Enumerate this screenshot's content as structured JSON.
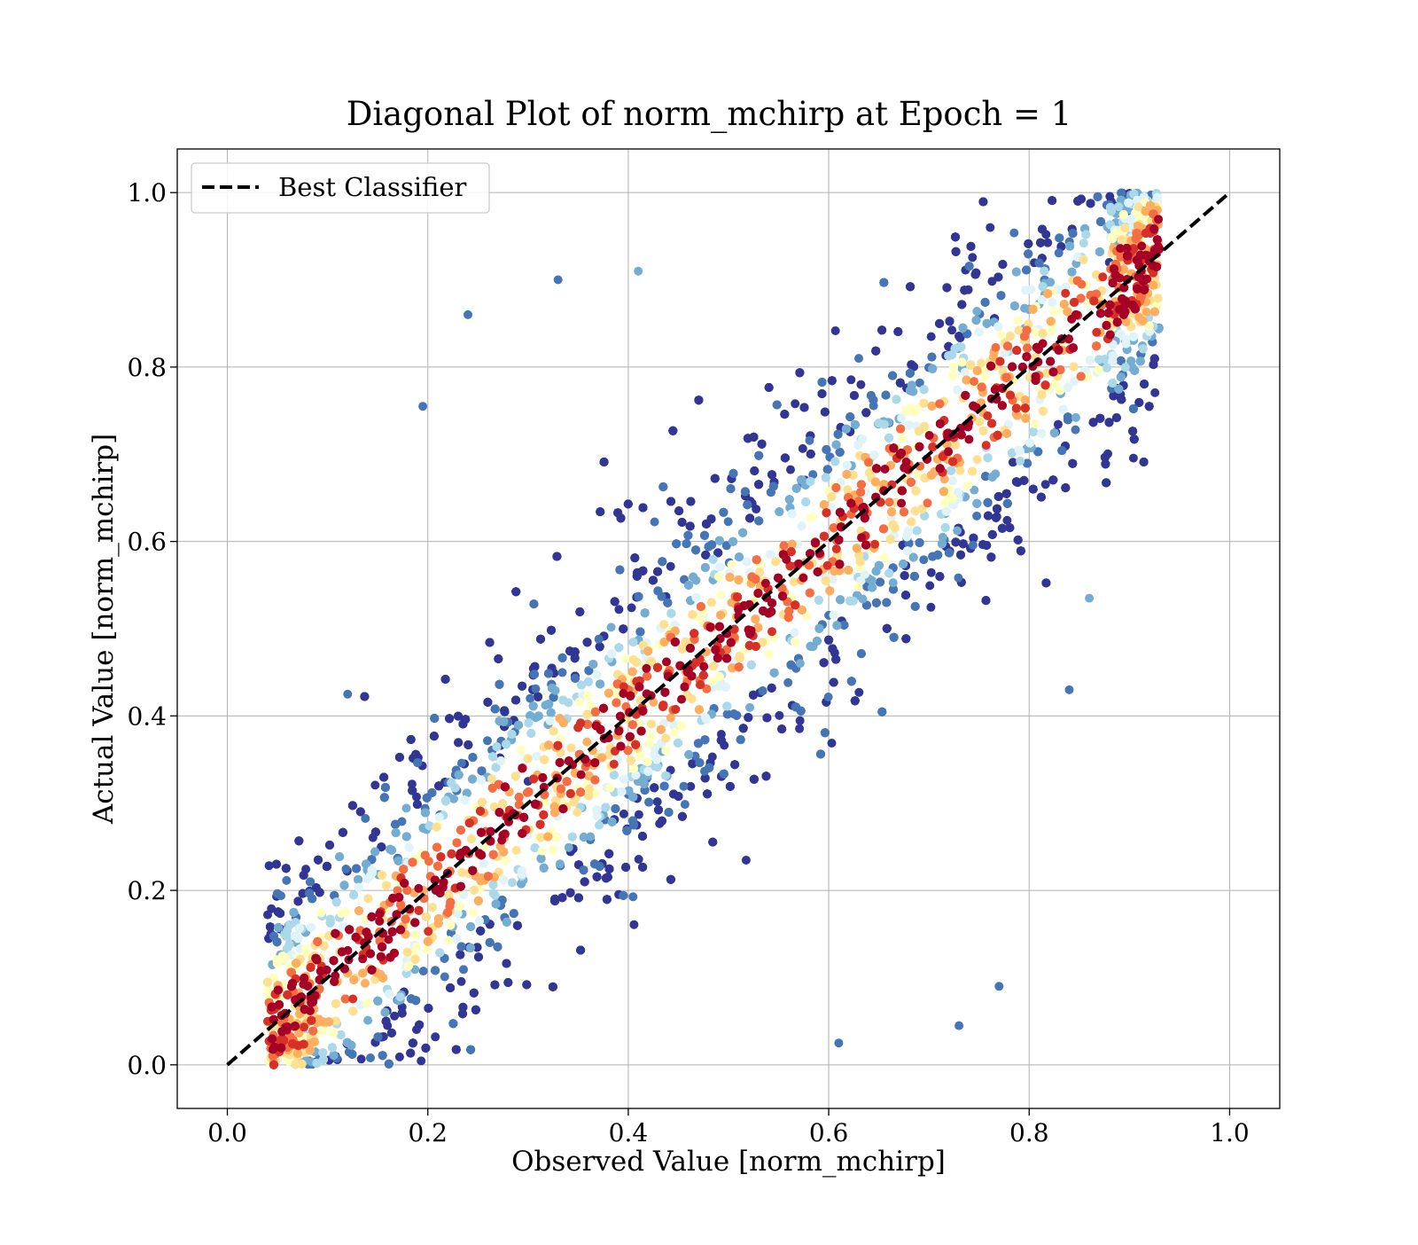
{
  "chart_data": {
    "type": "scatter",
    "title": "Diagonal Plot of norm_mchirp at Epoch = 1",
    "xlabel": "Observed Value [norm_mchirp]",
    "ylabel": "Actual Value [norm_mchirp]",
    "xlim": [
      -0.05,
      1.05
    ],
    "ylim": [
      -0.05,
      1.05
    ],
    "xticks": [
      "0.0",
      "0.2",
      "0.4",
      "0.6",
      "0.8",
      "1.0"
    ],
    "yticks": [
      "0.0",
      "0.2",
      "0.4",
      "0.6",
      "0.8",
      "1.0"
    ],
    "grid": true,
    "legend": {
      "placement": "upper-left",
      "entries": [
        {
          "label": "Best Classifier",
          "style": "dashed",
          "color": "#000000"
        }
      ]
    },
    "reference_line": {
      "x": [
        0.0,
        1.0
      ],
      "y": [
        0.0,
        1.0
      ],
      "style": "dashed",
      "color": "#000000"
    },
    "colormap": [
      "#313695",
      "#4575b4",
      "#74add1",
      "#abd9e9",
      "#e0f3f8",
      "#ffffbf",
      "#fee090",
      "#fdae61",
      "#f46d43",
      "#d73027",
      "#a50026"
    ],
    "colormap_name": "RdYlBu_r (point density)",
    "density_model": {
      "description": "Dense cloud along y = x, spread roughly ±0.3 around the diagonal, densest on the diagonal",
      "x_range": [
        0.04,
        0.93
      ],
      "y_range": [
        0.0,
        1.0
      ],
      "approx_points": 12000
    },
    "sample_points": [
      {
        "x": 0.195,
        "y": 0.755
      },
      {
        "x": 0.24,
        "y": 0.86
      },
      {
        "x": 0.33,
        "y": 0.9
      },
      {
        "x": 0.41,
        "y": 0.91
      },
      {
        "x": 0.84,
        "y": 0.43
      },
      {
        "x": 0.86,
        "y": 0.535
      },
      {
        "x": 0.73,
        "y": 0.045
      },
      {
        "x": 0.61,
        "y": 0.025
      },
      {
        "x": 0.88,
        "y": 0.92
      },
      {
        "x": 0.63,
        "y": 0.81
      },
      {
        "x": 0.3,
        "y": 0.325
      },
      {
        "x": 0.4,
        "y": 0.31
      },
      {
        "x": 0.12,
        "y": 0.425
      },
      {
        "x": 0.77,
        "y": 0.09
      }
    ]
  }
}
